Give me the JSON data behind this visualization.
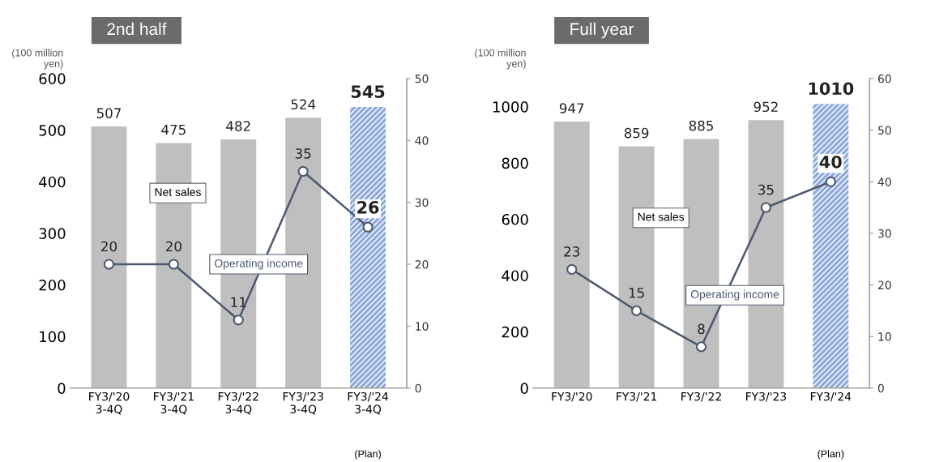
{
  "chart_data": [
    {
      "type": "bar",
      "title": "2nd half",
      "ylabel": "(100 million yen)",
      "categories": [
        "FY3/'20\n3-4Q",
        "FY3/'21\n3-4Q",
        "FY3/'22\n3-4Q",
        "FY3/'23\n3-4Q",
        "FY3/'24\n3-4Q"
      ],
      "series": [
        {
          "name": "Net sales",
          "colors": [
            "#bfbfbf",
            "#bfbfbf",
            "#bfbfbf",
            "#bfbfbf",
            "#8ea9db"
          ],
          "values": [
            507,
            475,
            482,
            524,
            545
          ]
        },
        {
          "name": "Operating income",
          "type": "line",
          "axis": "y2",
          "color": "#4d5a6e",
          "values": [
            20,
            20,
            11,
            35,
            26
          ]
        }
      ],
      "data_labels": true,
      "marker": "circle",
      "ylim": [
        0,
        600
      ],
      "yticks": [
        0,
        100,
        200,
        300,
        400,
        500,
        600
      ],
      "y2lim": [
        0,
        50
      ],
      "y2ticks": [
        0,
        10,
        20,
        30,
        40,
        50
      ],
      "annotations": [
        "(Plan)"
      ]
    },
    {
      "type": "bar",
      "title": "Full year",
      "ylabel": "(100 million yen)",
      "categories": [
        "FY3/'20",
        "FY3/'21",
        "FY3/'22",
        "FY3/'23",
        "FY3/'24"
      ],
      "series": [
        {
          "name": "Net sales",
          "colors": [
            "#bfbfbf",
            "#bfbfbf",
            "#bfbfbf",
            "#bfbfbf",
            "#8ea9db"
          ],
          "values": [
            947,
            859,
            885,
            952,
            1010
          ]
        },
        {
          "name": "Operating income",
          "type": "line",
          "axis": "y2",
          "color": "#4d5a6e",
          "values": [
            23,
            15,
            8,
            35,
            40
          ]
        }
      ],
      "data_labels": true,
      "marker": "circle",
      "ylim": [
        0,
        1100
      ],
      "yticks": [
        0,
        200,
        400,
        600,
        800,
        1000
      ],
      "y2lim": [
        0,
        60
      ],
      "y2ticks": [
        0,
        10,
        20,
        30,
        40,
        50,
        60
      ],
      "annotations": [
        "(Plan)"
      ]
    }
  ]
}
